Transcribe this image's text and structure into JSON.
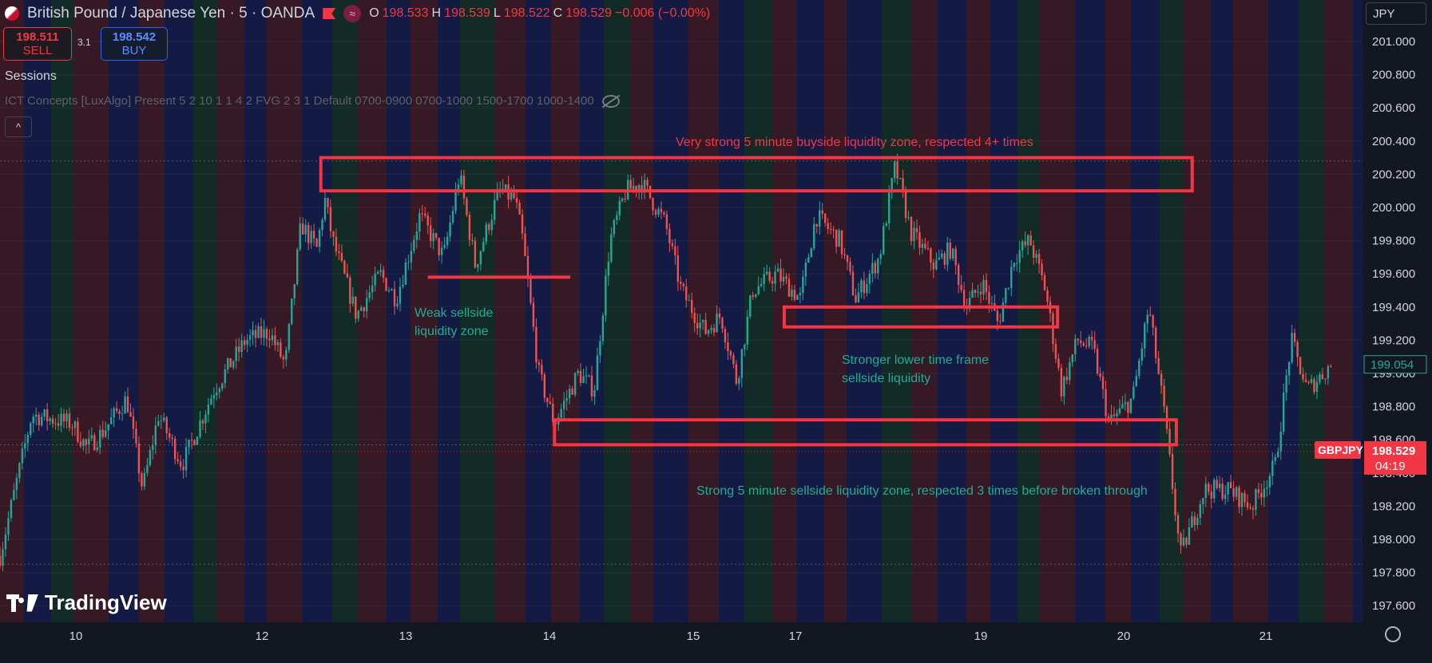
{
  "header": {
    "symbol_name": "British Pound / Japanese Yen",
    "sep1": "·",
    "interval": "5",
    "sep2": "·",
    "exchange": "OANDA",
    "icons": [
      "flag-icon",
      "wave-icon"
    ],
    "ohlc": {
      "o_label": "O",
      "o": "198.533",
      "h_label": "H",
      "h": "198.539",
      "l_label": "L",
      "l": "198.522",
      "c_label": "C",
      "c": "198.529",
      "change": "−0.006 (−0.00%)"
    }
  },
  "trade": {
    "sell_price": "198.511",
    "sell_label": "SELL",
    "spread": "3.1",
    "buy_price": "198.542",
    "buy_label": "BUY"
  },
  "indicators": {
    "sessions": "Sessions",
    "ict": "ICT Concepts [LuxAlgo] Present 5 2 10 1 1 4 2 FVG 2 3 1 Default 0700-0900 0700-1000 1500-1700 1000-1400",
    "collapse_glyph": "^"
  },
  "currency_selector": "JPY",
  "watermark": "TradingView",
  "colors": {
    "background": "#131722",
    "up": "#26a69a",
    "down": "#ef5350",
    "zone": "#f23645",
    "note_red": "#f23645",
    "note_green": "#22ab94"
  },
  "chart_data": {
    "type": "candlestick",
    "symbol": "GBPJPY",
    "ylim": [
      197.5,
      201.25
    ],
    "y_ticks": [
      "201.000",
      "200.800",
      "200.600",
      "200.400",
      "200.200",
      "200.000",
      "199.800",
      "199.600",
      "199.400",
      "199.200",
      "199.000",
      "198.800",
      "198.600",
      "198.400",
      "198.200",
      "198.000",
      "197.800",
      "197.600"
    ],
    "x_ticks": [
      "10",
      "12",
      "13",
      "14",
      "15",
      "17",
      "19",
      "20",
      "21"
    ],
    "price_path": [
      {
        "t": 0,
        "p": 197.9
      },
      {
        "t": 0.4,
        "p": 198.75
      },
      {
        "t": 0.9,
        "p": 198.7
      },
      {
        "t": 1.1,
        "p": 198.55
      },
      {
        "t": 1.3,
        "p": 198.65
      },
      {
        "t": 1.6,
        "p": 198.85
      },
      {
        "t": 1.8,
        "p": 198.3
      },
      {
        "t": 2.0,
        "p": 198.75
      },
      {
        "t": 2.3,
        "p": 198.45
      },
      {
        "t": 2.7,
        "p": 198.9
      },
      {
        "t": 3.1,
        "p": 199.2
      },
      {
        "t": 3.4,
        "p": 199.25
      },
      {
        "t": 3.6,
        "p": 199.05
      },
      {
        "t": 3.8,
        "p": 199.9
      },
      {
        "t": 4.0,
        "p": 199.75
      },
      {
        "t": 4.1,
        "p": 200.05
      },
      {
        "t": 4.2,
        "p": 199.8
      },
      {
        "t": 4.5,
        "p": 199.35
      },
      {
        "t": 4.8,
        "p": 199.6
      },
      {
        "t": 5.0,
        "p": 199.45
      },
      {
        "t": 5.3,
        "p": 199.95
      },
      {
        "t": 5.6,
        "p": 199.7
      },
      {
        "t": 5.8,
        "p": 200.2
      },
      {
        "t": 6.0,
        "p": 199.65
      },
      {
        "t": 6.3,
        "p": 200.1
      },
      {
        "t": 6.5,
        "p": 200.05
      },
      {
        "t": 6.6,
        "p": 199.8
      },
      {
        "t": 6.8,
        "p": 199.0
      },
      {
        "t": 7.0,
        "p": 198.7
      },
      {
        "t": 7.3,
        "p": 199.0
      },
      {
        "t": 7.5,
        "p": 198.9
      },
      {
        "t": 7.7,
        "p": 199.8
      },
      {
        "t": 7.9,
        "p": 200.1
      },
      {
        "t": 8.1,
        "p": 200.15
      },
      {
        "t": 8.4,
        "p": 199.9
      },
      {
        "t": 8.6,
        "p": 199.5
      },
      {
        "t": 8.9,
        "p": 199.25
      },
      {
        "t": 9.1,
        "p": 199.35
      },
      {
        "t": 9.3,
        "p": 198.95
      },
      {
        "t": 9.5,
        "p": 199.5
      },
      {
        "t": 9.8,
        "p": 199.6
      },
      {
        "t": 10.1,
        "p": 199.45
      },
      {
        "t": 10.3,
        "p": 199.95
      },
      {
        "t": 10.6,
        "p": 199.8
      },
      {
        "t": 10.8,
        "p": 199.45
      },
      {
        "t": 11.1,
        "p": 199.7
      },
      {
        "t": 11.3,
        "p": 200.25
      },
      {
        "t": 11.5,
        "p": 199.85
      },
      {
        "t": 11.8,
        "p": 199.65
      },
      {
        "t": 12.0,
        "p": 199.75
      },
      {
        "t": 12.2,
        "p": 199.4
      },
      {
        "t": 12.4,
        "p": 199.55
      },
      {
        "t": 12.6,
        "p": 199.3
      },
      {
        "t": 12.8,
        "p": 199.7
      },
      {
        "t": 13.0,
        "p": 199.8
      },
      {
        "t": 13.2,
        "p": 199.5
      },
      {
        "t": 13.4,
        "p": 198.9
      },
      {
        "t": 13.6,
        "p": 199.2
      },
      {
        "t": 13.8,
        "p": 199.15
      },
      {
        "t": 14.0,
        "p": 198.7
      },
      {
        "t": 14.3,
        "p": 198.85
      },
      {
        "t": 14.5,
        "p": 199.4
      },
      {
        "t": 14.7,
        "p": 198.75
      },
      {
        "t": 14.9,
        "p": 197.9
      },
      {
        "t": 15.2,
        "p": 198.3
      },
      {
        "t": 15.5,
        "p": 198.3
      },
      {
        "t": 15.8,
        "p": 198.2
      },
      {
        "t": 16.1,
        "p": 198.45
      },
      {
        "t": 16.3,
        "p": 199.2
      },
      {
        "t": 16.5,
        "p": 198.9
      },
      {
        "t": 16.8,
        "p": 199.05
      }
    ],
    "zones": [
      {
        "label": "Very strong 5 minute buyside liquidity zone, respected 4+ times",
        "top": 200.3,
        "bottom": 200.1,
        "x0": 4.05,
        "x1": 15.05
      },
      {
        "label": "Stronger lower time frame sellside liquidity",
        "top": 199.4,
        "bottom": 199.28,
        "x0": 9.9,
        "x1": 13.35
      },
      {
        "label": "Strong 5 minute sellside liquidity zone, respected 3 times before broken through",
        "top": 198.72,
        "bottom": 198.57,
        "x0": 7.0,
        "x1": 14.85
      }
    ],
    "lines": [
      {
        "label": "Weak sellside liquidity zone",
        "y": 199.58,
        "x0": 5.4,
        "x1": 7.2
      }
    ],
    "notes": [
      {
        "text": "Very strong 5 minute buyside liquidity zone, respected 4+ times",
        "color": "red"
      },
      {
        "text": "Weak sellside\nliquidity zone",
        "color": "green"
      },
      {
        "text": "Stronger lower time frame\nsellside liquidity",
        "color": "green"
      },
      {
        "text": "Strong 5 minute sellside liquidity zone, respected 3 times before broken through",
        "color": "green"
      }
    ],
    "price_labels": [
      {
        "value": "199.054",
        "price": 199.054,
        "kind": "reference"
      },
      {
        "value": "198.529",
        "price": 198.529,
        "kind": "last",
        "symbol": "GBPJPY",
        "countdown": "04:19"
      }
    ],
    "reference_lines": [
      200.28,
      198.57,
      197.85
    ]
  }
}
